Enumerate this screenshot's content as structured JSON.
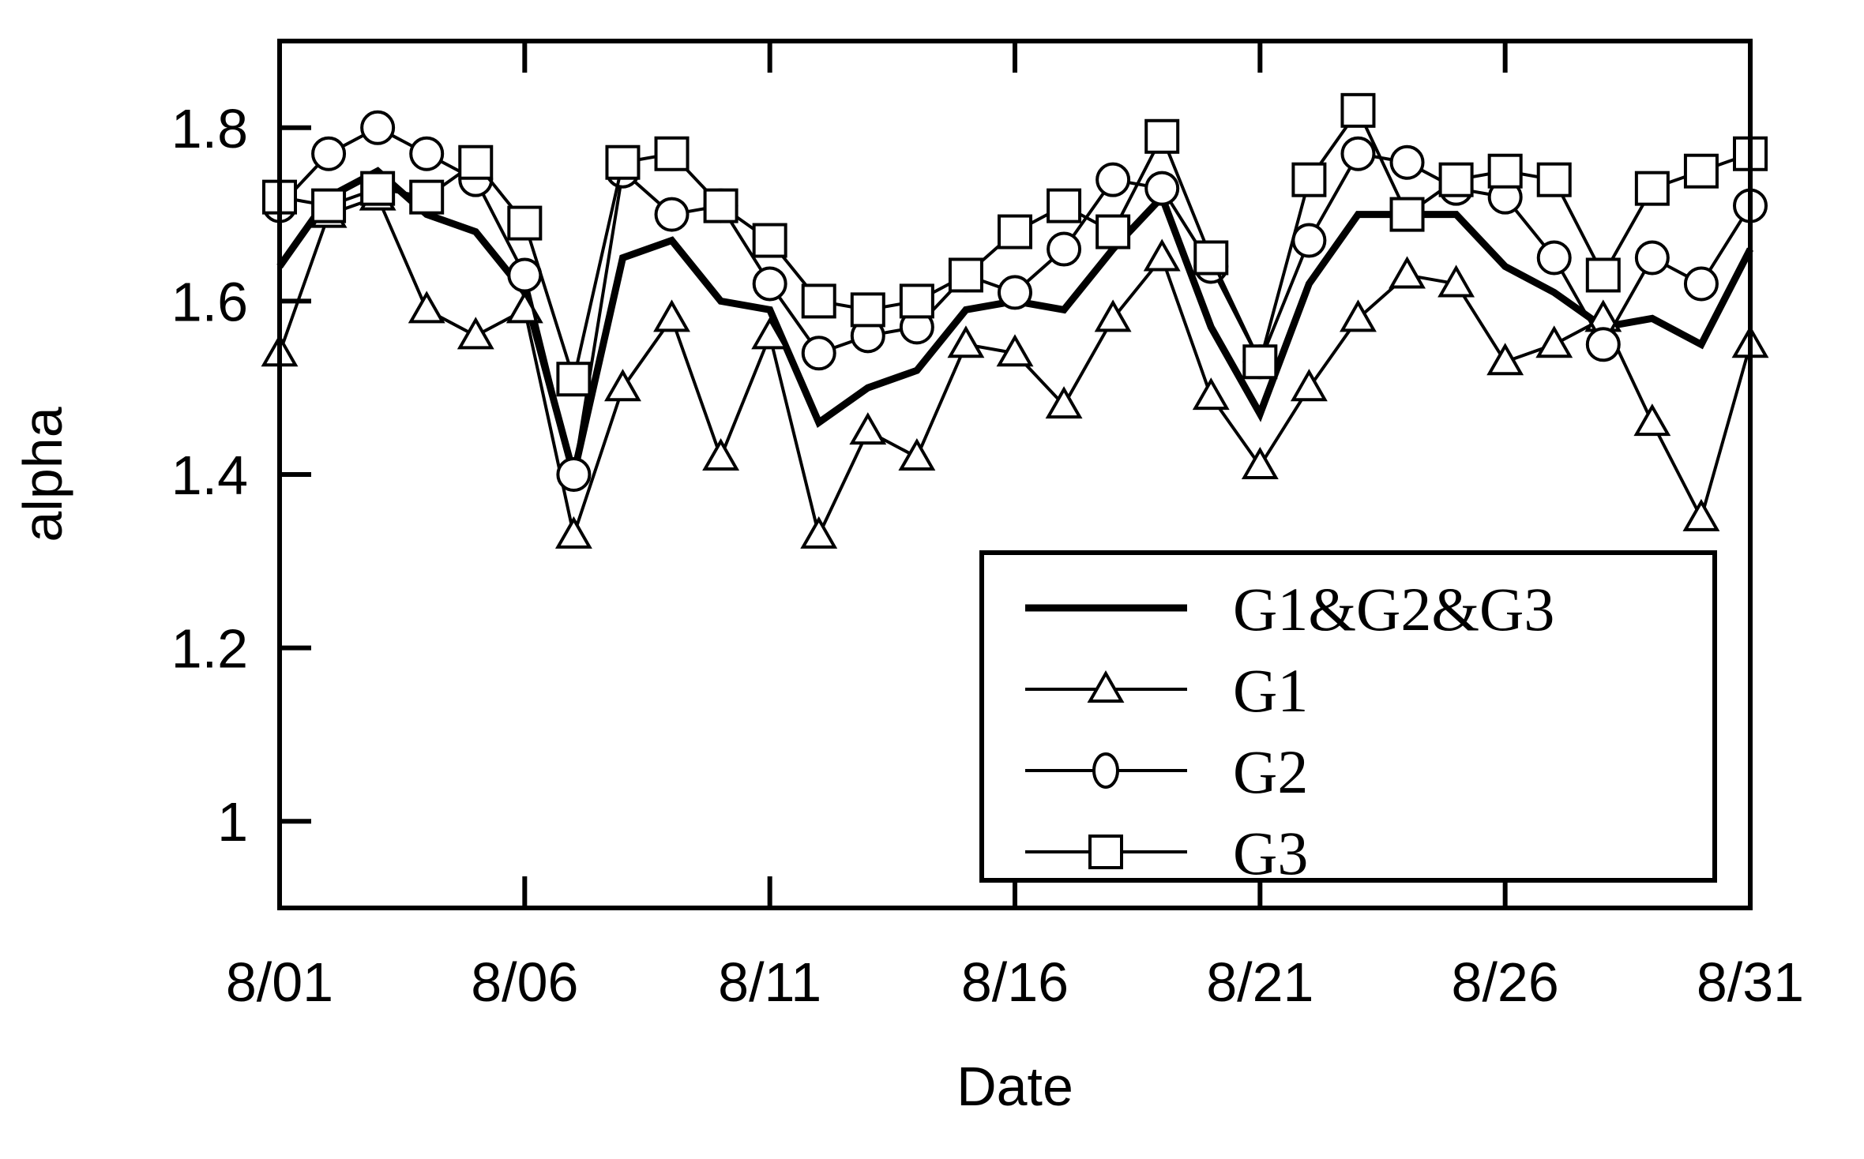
{
  "chart_data": {
    "type": "line",
    "title": "",
    "xlabel": "Date",
    "ylabel": "alpha",
    "ylim": [
      0.9,
      1.9
    ],
    "yticks": [
      1,
      1.2,
      1.4,
      1.6,
      1.8
    ],
    "ytick_labels": [
      "1",
      "1.2",
      "1.4",
      "1.6",
      "1.8"
    ],
    "xtick_labels": [
      "8/01",
      "8/06",
      "8/11",
      "8/16",
      "8/21",
      "8/26",
      "8/31"
    ],
    "grid": false,
    "legend_position": "lower right (inside)",
    "x": [
      "8/01",
      "8/02",
      "8/03",
      "8/04",
      "8/05",
      "8/06",
      "8/07",
      "8/08",
      "8/09",
      "8/10",
      "8/11",
      "8/12",
      "8/13",
      "8/14",
      "8/15",
      "8/16",
      "8/17",
      "8/18",
      "8/19",
      "8/20",
      "8/21",
      "8/22",
      "8/23",
      "8/24",
      "8/25",
      "8/26",
      "8/27",
      "8/28",
      "8/29",
      "8/30",
      "8/31"
    ],
    "series": [
      {
        "name": "G1&G2&G3",
        "marker": "none",
        "line": "thick",
        "values": [
          1.64,
          1.72,
          1.75,
          1.7,
          1.68,
          1.61,
          1.4,
          1.65,
          1.67,
          1.6,
          1.59,
          1.46,
          1.5,
          1.52,
          1.59,
          1.6,
          1.59,
          1.66,
          1.72,
          1.57,
          1.47,
          1.62,
          1.7,
          1.7,
          1.7,
          1.64,
          1.61,
          1.57,
          1.58,
          1.55,
          1.66
        ]
      },
      {
        "name": "G1",
        "marker": "triangle",
        "line": "thin",
        "values": [
          1.54,
          1.7,
          1.72,
          1.59,
          1.56,
          1.59,
          1.33,
          1.5,
          1.58,
          1.42,
          1.56,
          1.33,
          1.45,
          1.42,
          1.55,
          1.54,
          1.48,
          1.58,
          1.65,
          1.49,
          1.41,
          1.5,
          1.58,
          1.63,
          1.62,
          1.53,
          1.55,
          1.58,
          1.46,
          1.35,
          1.55
        ]
      },
      {
        "name": "G2",
        "marker": "circle",
        "line": "thin",
        "values": [
          1.71,
          1.77,
          1.8,
          1.77,
          1.74,
          1.63,
          1.4,
          1.75,
          1.7,
          1.71,
          1.62,
          1.54,
          1.56,
          1.57,
          1.63,
          1.61,
          1.66,
          1.74,
          1.73,
          1.64,
          1.53,
          1.67,
          1.77,
          1.76,
          1.73,
          1.72,
          1.65,
          1.55,
          1.65,
          1.62,
          1.71
        ]
      },
      {
        "name": "G3",
        "marker": "square",
        "line": "thin",
        "values": [
          1.72,
          1.71,
          1.73,
          1.72,
          1.76,
          1.69,
          1.51,
          1.76,
          1.77,
          1.71,
          1.67,
          1.6,
          1.59,
          1.6,
          1.63,
          1.68,
          1.71,
          1.68,
          1.79,
          1.65,
          1.53,
          1.74,
          1.82,
          1.7,
          1.74,
          1.75,
          1.74,
          1.63,
          1.73,
          1.75,
          1.77
        ]
      }
    ]
  },
  "legend": {
    "items": [
      {
        "label": "G1&G2&G3"
      },
      {
        "label": "G1"
      },
      {
        "label": "G2"
      },
      {
        "label": "G3"
      }
    ]
  }
}
